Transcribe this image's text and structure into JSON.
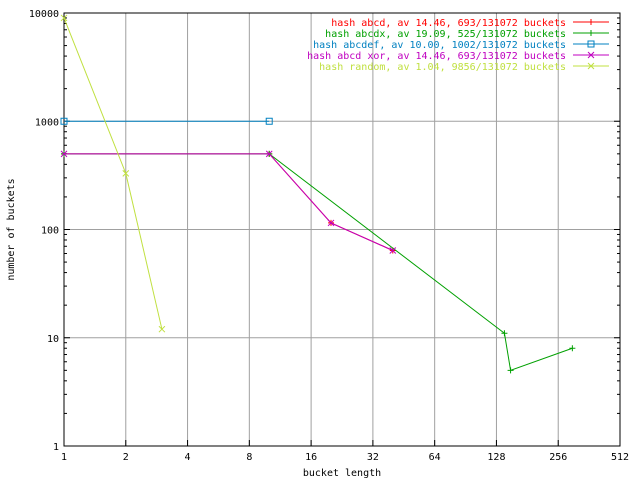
{
  "chart_data": {
    "type": "line",
    "xlabel": "bucket length",
    "ylabel": "number of buckets",
    "xscale": "log2",
    "yscale": "log10",
    "xlim": [
      1,
      512
    ],
    "ylim": [
      1,
      10000
    ],
    "x_ticks": [
      1,
      2,
      4,
      8,
      16,
      32,
      64,
      128,
      256,
      512
    ],
    "y_ticks": [
      1,
      10,
      100,
      1000,
      10000
    ],
    "grid": true,
    "legend_position": "top-right",
    "series": [
      {
        "name": "hash abcd, av 14.46, 693/131072 buckets",
        "color": "#ff0000",
        "marker": "plus",
        "x": [
          1,
          10,
          20,
          40
        ],
        "y": [
          500,
          500,
          115,
          64
        ]
      },
      {
        "name": "hash abcdx, av 19.09, 525/131072 buckets",
        "color": "#00a000",
        "marker": "plus",
        "x": [
          1,
          10,
          140,
          150,
          300
        ],
        "y": [
          500,
          500,
          11,
          5,
          8
        ]
      },
      {
        "name": "hash abcdef, av 10.00, 1002/131072 buckets",
        "color": "#0080c0",
        "marker": "square",
        "x": [
          1,
          10
        ],
        "y": [
          1000,
          1000
        ]
      },
      {
        "name": "hash abcd xor, av 14.46, 693/131072 buckets",
        "color": "#c000c0",
        "marker": "x",
        "x": [
          1,
          10,
          20,
          40
        ],
        "y": [
          500,
          500,
          115,
          64
        ]
      },
      {
        "name": "hash random, av 1.04, 9856/131072 buckets",
        "color": "#c0e040",
        "marker": "x",
        "x": [
          1,
          2,
          3
        ],
        "y": [
          9000,
          330,
          12
        ]
      }
    ]
  }
}
